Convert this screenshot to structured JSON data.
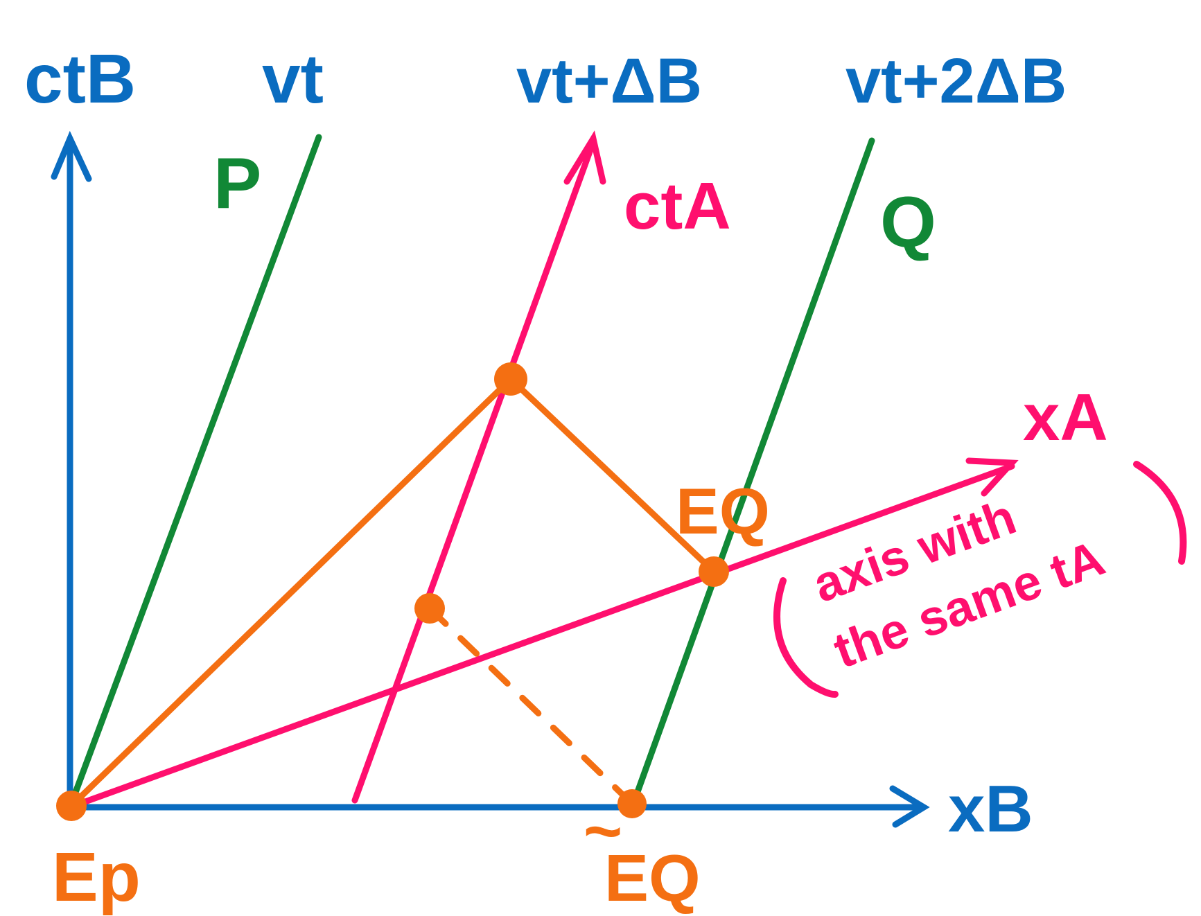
{
  "colors": {
    "axes_B": "#0a6cc0",
    "worldlines": "#118836",
    "axes_A": "#ff0f6e",
    "events": "#f46f12",
    "background": "#ffffff"
  },
  "labels": {
    "ct_b": "ctB",
    "x_b": "xB",
    "ct_a": "ctA",
    "x_a": "xA",
    "vt": "vt",
    "vt_delta": "vt+ΔB",
    "vt_2delta": "vt+2ΔB",
    "p": "P",
    "q": "Q",
    "ep": "Ep",
    "eq": "EQ",
    "eq_tilde": "EQ",
    "tilde_mark": "~",
    "note_line1": "axis with",
    "note_line2": "the same tA"
  }
}
